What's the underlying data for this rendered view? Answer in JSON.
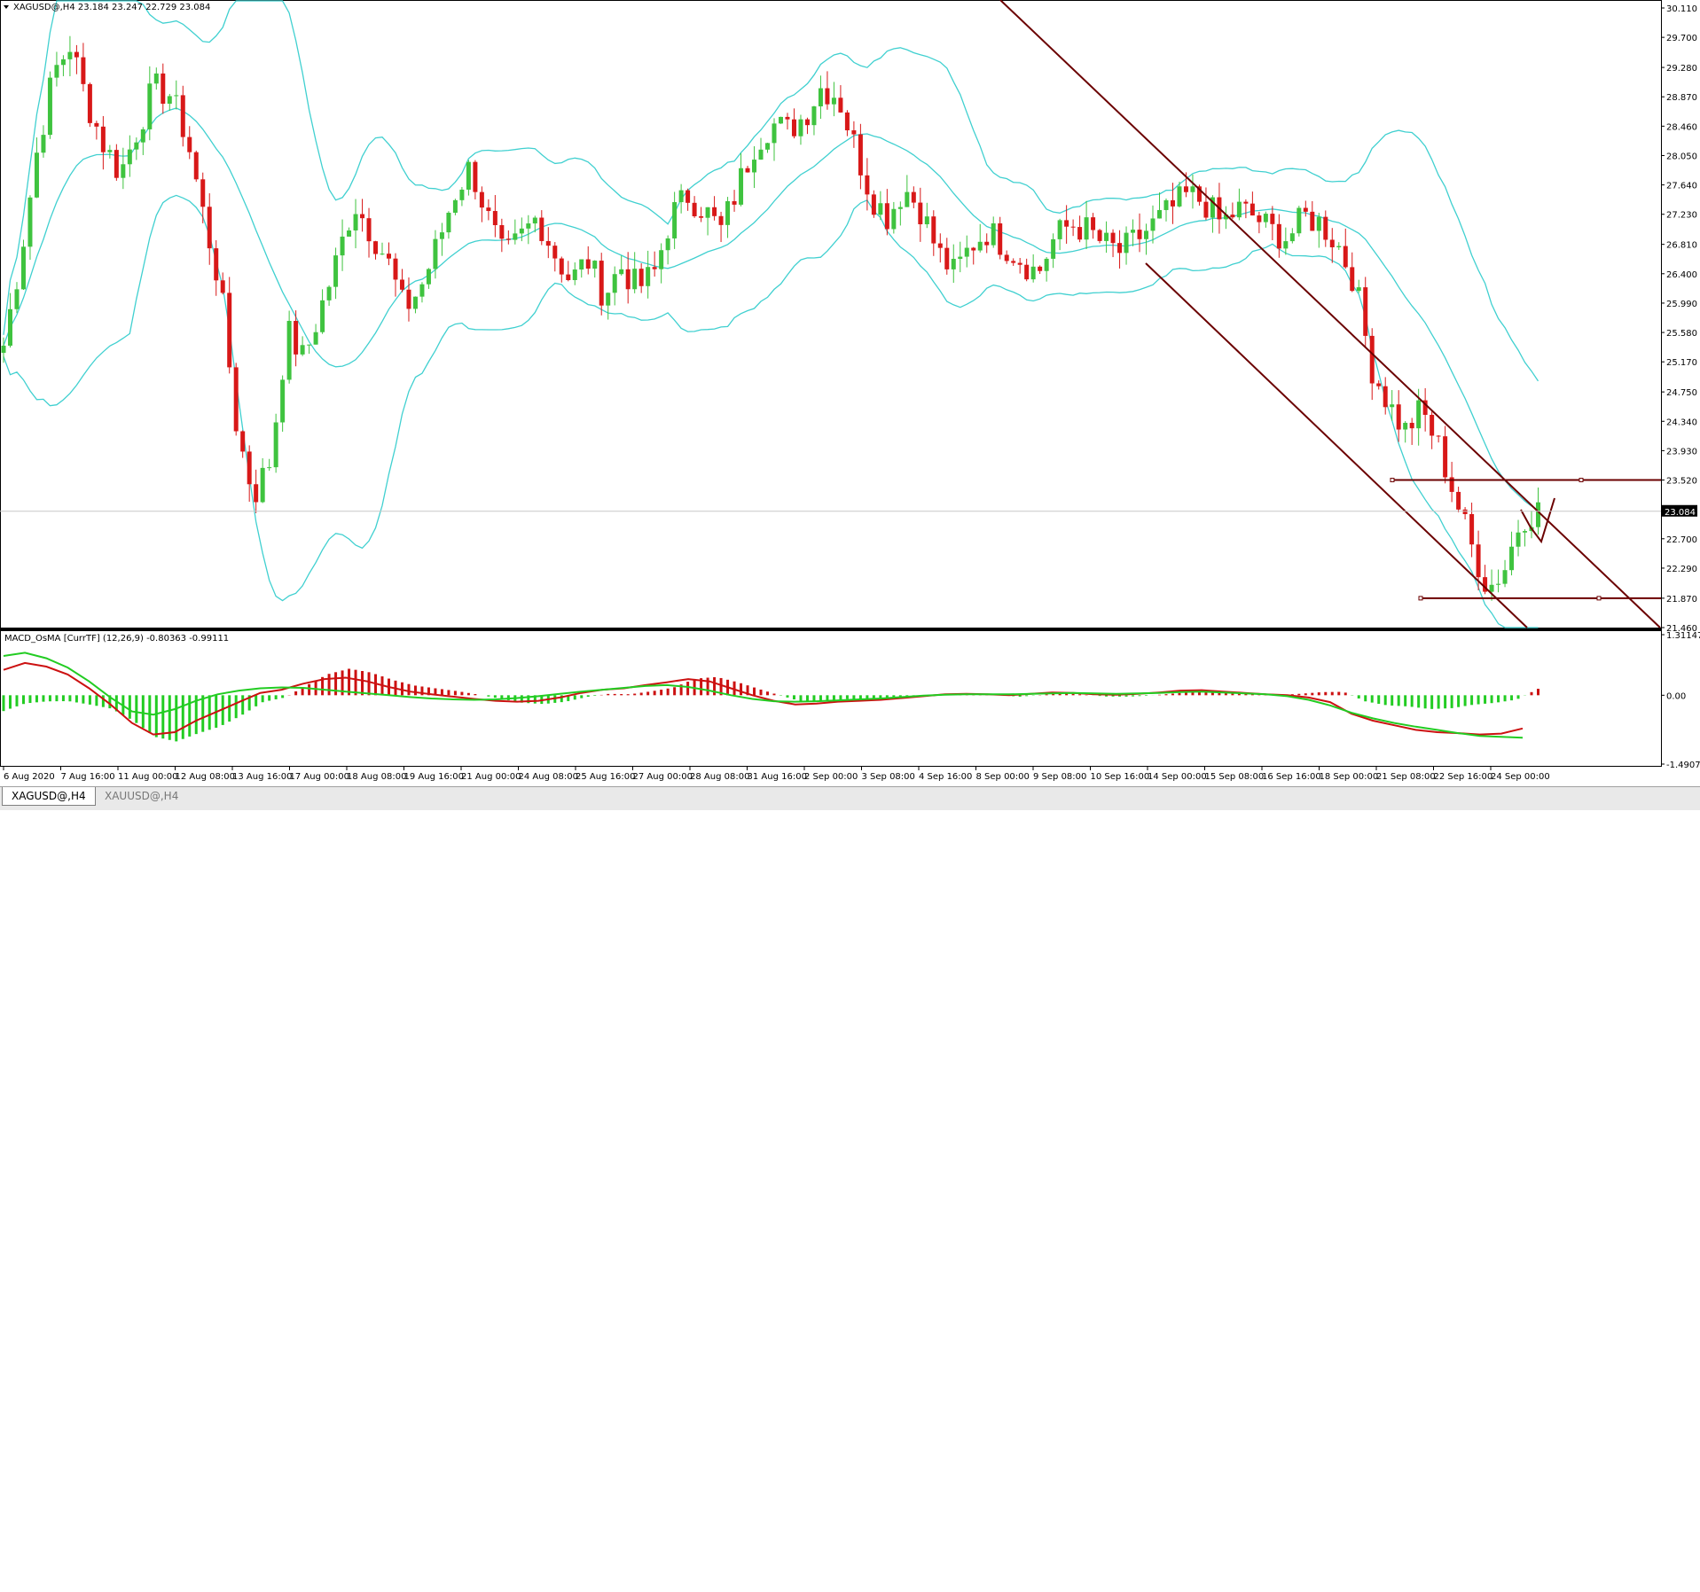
{
  "symbol_header": {
    "text": "XAGUSD@,H4  23.184 23.247 22.729 23.084",
    "dropdown_icon": "triangle-down-icon"
  },
  "indicator_header": {
    "text": "MACD_OsMA [CurrTF] (12,26,9) -0.80363 -0.99111"
  },
  "price_axis": {
    "labels": [
      "30.110",
      "29.700",
      "29.280",
      "28.870",
      "28.460",
      "28.050",
      "27.640",
      "27.230",
      "26.810",
      "26.400",
      "25.990",
      "25.580",
      "25.170",
      "24.750",
      "24.340",
      "23.930",
      "23.520",
      "23.084",
      "22.700",
      "22.290",
      "21.870",
      "21.460"
    ],
    "current_price": "23.084"
  },
  "macd_axis": {
    "labels": [
      "1.31147",
      "0.00",
      "-1.49078"
    ]
  },
  "time_axis": {
    "labels": [
      "6 Aug 2020",
      "7 Aug 16:00",
      "11 Aug 00:00",
      "12 Aug 08:00",
      "13 Aug 16:00",
      "17 Aug 00:00",
      "18 Aug 08:00",
      "19 Aug 16:00",
      "21 Aug 00:00",
      "24 Aug 08:00",
      "25 Aug 16:00",
      "27 Aug 00:00",
      "28 Aug 08:00",
      "31 Aug 16:00",
      "2 Sep 00:00",
      "3 Sep 08:00",
      "4 Sep 16:00",
      "8 Sep 00:00",
      "9 Sep 08:00",
      "10 Sep 16:00",
      "14 Sep 00:00",
      "15 Sep 08:00",
      "16 Sep 16:00",
      "18 Sep 00:00",
      "21 Sep 08:00",
      "22 Sep 16:00",
      "24 Sep 00:00"
    ]
  },
  "tabs": [
    {
      "label": "XAGUSD@,H4",
      "active": true
    },
    {
      "label": "XAUUSD@,H4",
      "active": false
    }
  ],
  "colors": {
    "bull": "#3fc33f",
    "bear": "#d81818",
    "bands": "#40d0d0",
    "trendline": "#6b0000",
    "macd_signal_green": "#22cc22",
    "macd_line_red": "#cc1111"
  },
  "chart_data": [
    {
      "type": "candlestick",
      "title": "XAGUSD@,H4",
      "ylim": [
        21.46,
        30.11
      ],
      "close_path": [
        25.4,
        26.6,
        28.1,
        29.2,
        29.6,
        28.8,
        28.2,
        27.8,
        28.4,
        29.0,
        28.9,
        28.3,
        27.2,
        26.2,
        24.2,
        23.3,
        23.8,
        25.6,
        25.2,
        25.9,
        26.6,
        27.4,
        27.0,
        26.6,
        25.9,
        26.2,
        26.8,
        27.5,
        27.9,
        27.2,
        26.6,
        26.9,
        27.2,
        26.7,
        26.3,
        26.6,
        26.1,
        26.5,
        26.2,
        26.4,
        27.2,
        27.5,
        27.3,
        27.0,
        27.6,
        28.2,
        28.5,
        28.4,
        28.6,
        29.0,
        28.9,
        28.2,
        27.5,
        27.2,
        27.6,
        27.3,
        26.7,
        26.4,
        26.8,
        27.0,
        26.8,
        26.6,
        26.4,
        26.9,
        27.1,
        27.0,
        26.8,
        26.7,
        26.9,
        27.1,
        27.3,
        27.5,
        27.4,
        27.1,
        27.3,
        27.2,
        27.0,
        26.9,
        27.2,
        27.1,
        26.8,
        26.3,
        25.1,
        24.6,
        24.2,
        24.5,
        24.0,
        23.3,
        22.6,
        22.0,
        22.3,
        23.0,
        23.1
      ],
      "bollinger_bands": true,
      "horizontal_levels": [
        23.52,
        21.87
      ],
      "annotations": []
    },
    {
      "type": "bar",
      "title": "MACD_OsMA [CurrTF] (12,26,9)",
      "values_text": "-0.80363 -0.99111",
      "ylim": [
        -1.49078,
        1.31147
      ],
      "macd": [
        0.55,
        0.7,
        0.62,
        0.45,
        0.15,
        -0.2,
        -0.6,
        -0.85,
        -0.8,
        -0.55,
        -0.35,
        -0.15,
        0.05,
        0.12,
        0.25,
        0.35,
        0.38,
        0.3,
        0.18,
        0.08,
        0.02,
        -0.03,
        -0.08,
        -0.12,
        -0.14,
        -0.12,
        -0.05,
        0.05,
        0.12,
        0.15,
        0.22,
        0.28,
        0.35,
        0.3,
        0.15,
        0.0,
        -0.12,
        -0.2,
        -0.18,
        -0.14,
        -0.12,
        -0.1,
        -0.06,
        -0.02,
        0.02,
        0.03,
        0.02,
        0.0,
        0.03,
        0.06,
        0.05,
        0.02,
        0.01,
        0.03,
        0.06,
        0.1,
        0.11,
        0.08,
        0.05,
        0.02,
        0.0,
        -0.05,
        -0.15,
        -0.4,
        -0.55,
        -0.65,
        -0.75,
        -0.8,
        -0.82,
        -0.85,
        -0.83,
        -0.72
      ],
      "signal": [
        0.85,
        0.92,
        0.8,
        0.6,
        0.3,
        -0.05,
        -0.35,
        -0.42,
        -0.3,
        -0.12,
        0.02,
        0.1,
        0.15,
        0.17,
        0.16,
        0.12,
        0.08,
        0.04,
        0.0,
        -0.04,
        -0.07,
        -0.09,
        -0.1,
        -0.09,
        -0.06,
        -0.02,
        0.03,
        0.08,
        0.12,
        0.16,
        0.2,
        0.22,
        0.18,
        0.1,
        0.0,
        -0.08,
        -0.13,
        -0.14,
        -0.13,
        -0.11,
        -0.09,
        -0.07,
        -0.04,
        -0.01,
        0.01,
        0.02,
        0.02,
        0.02,
        0.03,
        0.04,
        0.05,
        0.04,
        0.03,
        0.04,
        0.05,
        0.07,
        0.08,
        0.06,
        0.04,
        0.02,
        -0.02,
        -0.1,
        -0.22,
        -0.38,
        -0.5,
        -0.6,
        -0.68,
        -0.75,
        -0.82,
        -0.88,
        -0.9,
        -0.92
      ]
    }
  ]
}
